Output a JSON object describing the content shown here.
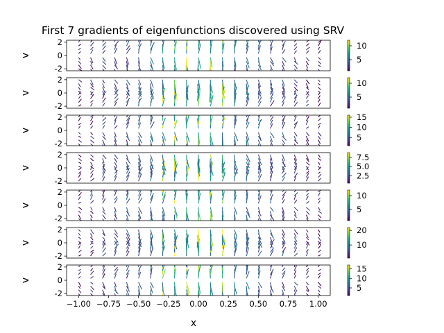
{
  "chart_data": {
    "type": "quiver",
    "title": "First 7 gradients of eigenfunctions discovered using SRV",
    "xlabel": "x",
    "ylabel": "v",
    "xlim": [
      -1.1,
      1.1
    ],
    "ylim": [
      -2.3,
      2.3
    ],
    "x_ticks": [
      "-1.00",
      "-0.75",
      "-0.50",
      "-0.25",
      "0.00",
      "0.25",
      "0.50",
      "0.75",
      "1.00"
    ],
    "y_ticks": [
      "-2",
      "0",
      "2"
    ],
    "colormap": "viridis",
    "grid": false,
    "panels": [
      {
        "index": 1,
        "colorbar_range": [
          1,
          12
        ],
        "colorbar_ticks": [
          "5",
          "10"
        ]
      },
      {
        "index": 2,
        "colorbar_range": [
          1,
          12
        ],
        "colorbar_ticks": [
          "5",
          "10"
        ]
      },
      {
        "index": 3,
        "colorbar_range": [
          1,
          16
        ],
        "colorbar_ticks": [
          "5",
          "10",
          "15"
        ]
      },
      {
        "index": 4,
        "colorbar_range": [
          0.5,
          8.8
        ],
        "colorbar_ticks": [
          "2.5",
          "5.0",
          "7.5"
        ]
      },
      {
        "index": 5,
        "colorbar_range": [
          1,
          12
        ],
        "colorbar_ticks": [
          "5",
          "10"
        ]
      },
      {
        "index": 6,
        "colorbar_range": [
          1,
          22
        ],
        "colorbar_ticks": [
          "10",
          "20"
        ]
      },
      {
        "index": 7,
        "colorbar_range": [
          1,
          17
        ],
        "colorbar_ticks": [
          "5",
          "10",
          "15"
        ]
      }
    ]
  },
  "colors": {
    "viridis": [
      "#440154",
      "#482878",
      "#3e4989",
      "#31688e",
      "#26828e",
      "#1f9e89",
      "#35b779",
      "#6ece58",
      "#b5de2b",
      "#fde725"
    ]
  }
}
